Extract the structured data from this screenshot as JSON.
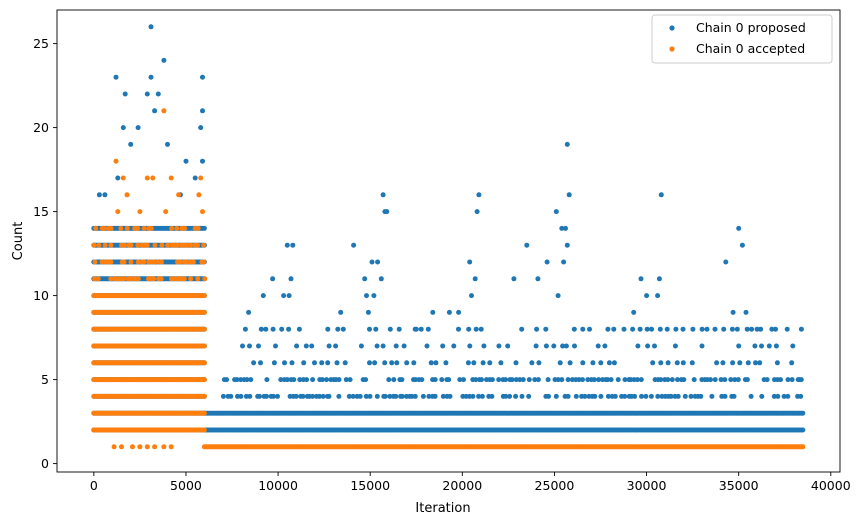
{
  "chart_data": {
    "type": "scatter",
    "title": "",
    "xlabel": "Iteration",
    "ylabel": "Count",
    "xlim": [
      -2000,
      40500
    ],
    "ylim": [
      -0.5,
      27
    ],
    "xticks": [
      0,
      5000,
      10000,
      15000,
      20000,
      25000,
      30000,
      35000,
      40000
    ],
    "yticks": [
      0,
      5,
      10,
      15,
      20,
      25
    ],
    "grid": false,
    "legend": {
      "position": "top-right"
    },
    "series": [
      {
        "name": "Chain 0 proposed",
        "color": "#1f77b4",
        "segments": [
          {
            "x_range": [
              0,
              6000
            ],
            "values": [
              2,
              3,
              4,
              5,
              6,
              7,
              8,
              9,
              10,
              11,
              12,
              13,
              14
            ],
            "density": "dense"
          },
          {
            "x_range": [
              6000,
              38500
            ],
            "values": [
              2,
              3
            ],
            "density": "dense"
          },
          {
            "x_range": [
              7000,
              38500
            ],
            "values": [
              4,
              5
            ],
            "density": "medium"
          },
          {
            "x_range": [
              8000,
              38500
            ],
            "values": [
              6,
              7,
              8
            ],
            "density": "sparse"
          }
        ],
        "points": [
          {
            "x": 3100,
            "y": 26
          },
          {
            "x": 1200,
            "y": 23
          },
          {
            "x": 3100,
            "y": 23
          },
          {
            "x": 3800,
            "y": 24
          },
          {
            "x": 5900,
            "y": 23
          },
          {
            "x": 1700,
            "y": 22
          },
          {
            "x": 2900,
            "y": 22
          },
          {
            "x": 3500,
            "y": 22
          },
          {
            "x": 5900,
            "y": 21
          },
          {
            "x": 5800,
            "y": 20
          },
          {
            "x": 3300,
            "y": 21
          },
          {
            "x": 1600,
            "y": 20
          },
          {
            "x": 2400,
            "y": 20
          },
          {
            "x": 4000,
            "y": 19
          },
          {
            "x": 2000,
            "y": 19
          },
          {
            "x": 5000,
            "y": 18
          },
          {
            "x": 5900,
            "y": 18
          },
          {
            "x": 600,
            "y": 16
          },
          {
            "x": 300,
            "y": 16
          },
          {
            "x": 1300,
            "y": 17
          },
          {
            "x": 4700,
            "y": 16
          },
          {
            "x": 5500,
            "y": 17
          },
          {
            "x": 10500,
            "y": 13
          },
          {
            "x": 10800,
            "y": 13
          },
          {
            "x": 10700,
            "y": 11
          },
          {
            "x": 10600,
            "y": 10
          },
          {
            "x": 9700,
            "y": 11
          },
          {
            "x": 9200,
            "y": 10
          },
          {
            "x": 10300,
            "y": 10
          },
          {
            "x": 8400,
            "y": 9
          },
          {
            "x": 13400,
            "y": 9
          },
          {
            "x": 14100,
            "y": 13
          },
          {
            "x": 14700,
            "y": 11
          },
          {
            "x": 15100,
            "y": 12
          },
          {
            "x": 15400,
            "y": 12
          },
          {
            "x": 15700,
            "y": 16
          },
          {
            "x": 15800,
            "y": 15
          },
          {
            "x": 15600,
            "y": 11
          },
          {
            "x": 14800,
            "y": 10
          },
          {
            "x": 15200,
            "y": 10
          },
          {
            "x": 14900,
            "y": 9
          },
          {
            "x": 15900,
            "y": 15
          },
          {
            "x": 17500,
            "y": 8
          },
          {
            "x": 18400,
            "y": 9
          },
          {
            "x": 19300,
            "y": 9
          },
          {
            "x": 19800,
            "y": 9
          },
          {
            "x": 20500,
            "y": 10
          },
          {
            "x": 20700,
            "y": 11
          },
          {
            "x": 20800,
            "y": 15
          },
          {
            "x": 20900,
            "y": 16
          },
          {
            "x": 20400,
            "y": 12
          },
          {
            "x": 22800,
            "y": 11
          },
          {
            "x": 23500,
            "y": 13
          },
          {
            "x": 24100,
            "y": 11
          },
          {
            "x": 24600,
            "y": 12
          },
          {
            "x": 25100,
            "y": 15
          },
          {
            "x": 25400,
            "y": 14
          },
          {
            "x": 25700,
            "y": 19
          },
          {
            "x": 25600,
            "y": 14
          },
          {
            "x": 25700,
            "y": 13
          },
          {
            "x": 25800,
            "y": 16
          },
          {
            "x": 25500,
            "y": 12
          },
          {
            "x": 25200,
            "y": 10
          },
          {
            "x": 29700,
            "y": 11
          },
          {
            "x": 30000,
            "y": 10
          },
          {
            "x": 30800,
            "y": 16
          },
          {
            "x": 30700,
            "y": 11
          },
          {
            "x": 30600,
            "y": 10
          },
          {
            "x": 29300,
            "y": 9
          },
          {
            "x": 34300,
            "y": 12
          },
          {
            "x": 35000,
            "y": 14
          },
          {
            "x": 35200,
            "y": 13
          },
          {
            "x": 34700,
            "y": 9
          },
          {
            "x": 35400,
            "y": 9
          },
          {
            "x": 35700,
            "y": 8
          },
          {
            "x": 36000,
            "y": 8
          },
          {
            "x": 37900,
            "y": 5
          },
          {
            "x": 38300,
            "y": 5
          }
        ]
      },
      {
        "name": "Chain 0 accepted",
        "color": "#ff7f0e",
        "segments": [
          {
            "x_range": [
              0,
              6000
            ],
            "values": [
              2,
              3,
              4,
              5,
              6,
              7,
              8,
              9,
              10
            ],
            "density": "dense"
          },
          {
            "x_range": [
              0,
              6000
            ],
            "values": [
              11,
              12,
              13,
              14
            ],
            "density": "medium"
          },
          {
            "x_range": [
              6000,
              38500
            ],
            "values": [
              1
            ],
            "density": "dense"
          }
        ],
        "points": [
          {
            "x": 1200,
            "y": 18
          },
          {
            "x": 3800,
            "y": 21
          },
          {
            "x": 1600,
            "y": 17
          },
          {
            "x": 2900,
            "y": 17
          },
          {
            "x": 3200,
            "y": 17
          },
          {
            "x": 4200,
            "y": 17
          },
          {
            "x": 5800,
            "y": 17
          },
          {
            "x": 1800,
            "y": 16
          },
          {
            "x": 4600,
            "y": 16
          },
          {
            "x": 5700,
            "y": 16
          },
          {
            "x": 1300,
            "y": 15
          },
          {
            "x": 2500,
            "y": 15
          },
          {
            "x": 3900,
            "y": 15
          },
          {
            "x": 5900,
            "y": 15
          },
          {
            "x": 1100,
            "y": 1
          },
          {
            "x": 1500,
            "y": 1
          },
          {
            "x": 2100,
            "y": 1
          },
          {
            "x": 2500,
            "y": 1
          },
          {
            "x": 2900,
            "y": 1
          },
          {
            "x": 3300,
            "y": 1
          },
          {
            "x": 3800,
            "y": 1
          },
          {
            "x": 4200,
            "y": 1
          }
        ]
      }
    ]
  }
}
